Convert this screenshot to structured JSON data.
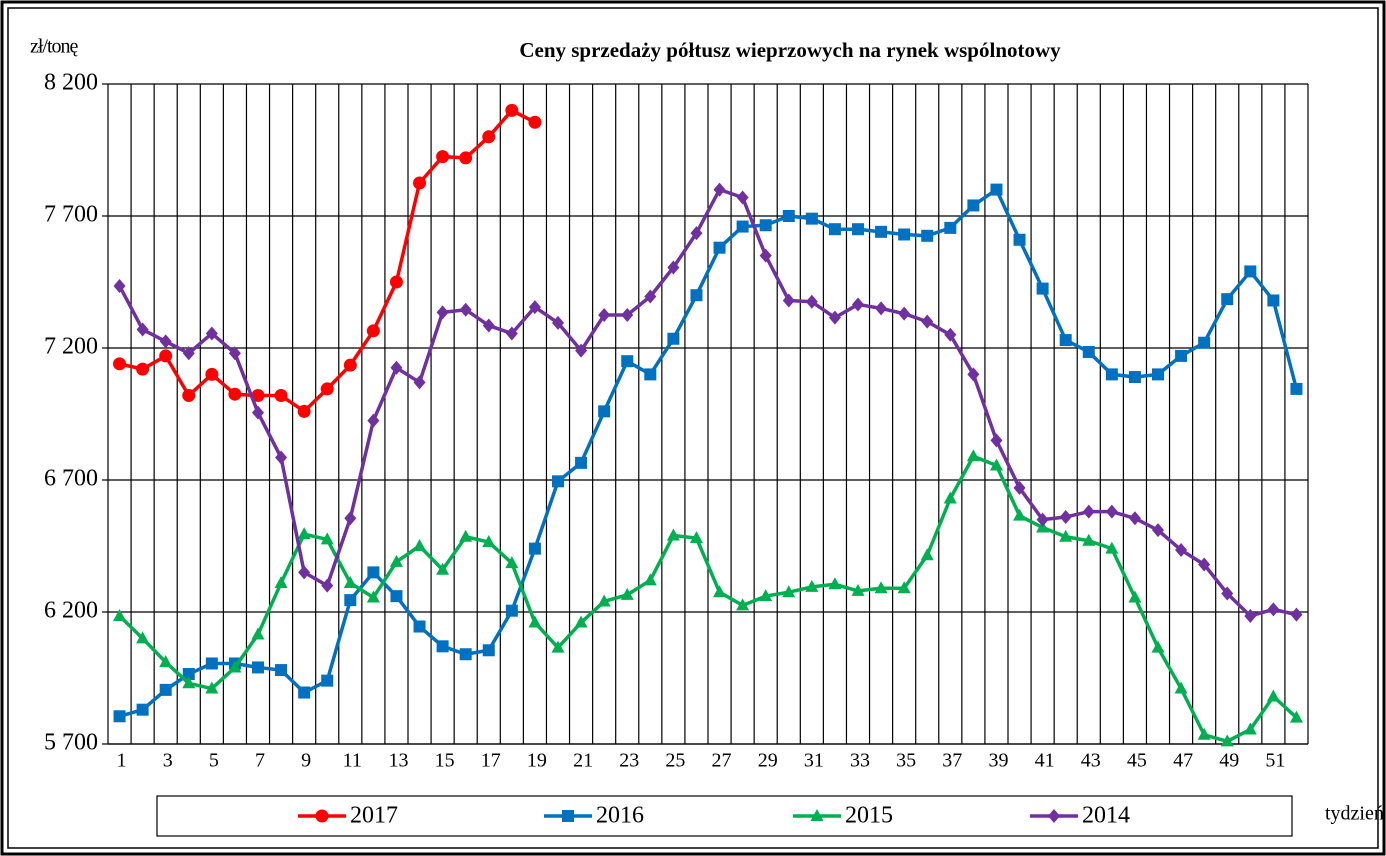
{
  "chart_data": {
    "type": "line",
    "title": "Ceny sprzedaży półtusz wieprzowych  na rynek wspólnotowy",
    "y_label": "zł/tonę",
    "x_label": "tydzień",
    "categories": [
      "1",
      null,
      "3",
      null,
      "5",
      null,
      "7",
      null,
      "9",
      null,
      "11",
      null,
      "13",
      null,
      "15",
      null,
      "17",
      null,
      "19",
      null,
      "21",
      null,
      "23",
      null,
      "25",
      null,
      "27",
      null,
      "29",
      null,
      "31",
      null,
      "33",
      null,
      "35",
      null,
      "37",
      null,
      "39",
      null,
      "41",
      null,
      "43",
      null,
      "45",
      null,
      "47",
      null,
      "49",
      null,
      "51",
      null
    ],
    "ylim": [
      5700,
      8200
    ],
    "yticks": [
      {
        "value": 5700,
        "label": "5 700"
      },
      {
        "value": 6200,
        "label": "6 200"
      },
      {
        "value": 6700,
        "label": "6 700"
      },
      {
        "value": 7200,
        "label": "7 200"
      },
      {
        "value": 7700,
        "label": "7 700"
      },
      {
        "value": 8200,
        "label": "8 200"
      }
    ],
    "grid": true,
    "legend": "bottom",
    "series": [
      {
        "name": "2017",
        "color": "#ff0000",
        "marker": "circle",
        "values": [
          7140,
          7120,
          7170,
          7020,
          7100,
          7025,
          7020,
          7020,
          6960,
          7045,
          7135,
          7265,
          7450,
          7825,
          7925,
          7920,
          8000,
          8100,
          8055,
          null,
          null,
          null,
          null,
          null,
          null,
          null,
          null,
          null,
          null,
          null,
          null,
          null,
          null,
          null,
          null,
          null,
          null,
          null,
          null,
          null,
          null,
          null,
          null,
          null,
          null,
          null,
          null,
          null,
          null,
          null,
          null,
          null
        ]
      },
      {
        "name": "2016",
        "color": "#0070c0",
        "marker": "square",
        "values": [
          5805,
          5830,
          5905,
          5965,
          6005,
          6005,
          5990,
          5980,
          5895,
          5940,
          6245,
          6350,
          6260,
          6145,
          6070,
          6040,
          6055,
          6205,
          6440,
          6695,
          6765,
          6960,
          7150,
          7100,
          7235,
          7400,
          7580,
          7660,
          7665,
          7700,
          7690,
          7650,
          7650,
          7640,
          7630,
          7625,
          7655,
          7740,
          7800,
          7610,
          7425,
          7230,
          7185,
          7100,
          7090,
          7100,
          7170,
          7220,
          7385,
          7490,
          7380,
          7045
        ]
      },
      {
        "name": "2015",
        "color": "#00b050",
        "marker": "triangle",
        "values": [
          6185,
          6100,
          6010,
          5930,
          5910,
          5990,
          6115,
          6310,
          6495,
          6475,
          6310,
          6255,
          6390,
          6450,
          6360,
          6485,
          6465,
          6385,
          6160,
          6065,
          6160,
          6240,
          6265,
          6320,
          6490,
          6480,
          6275,
          6225,
          6260,
          6275,
          6295,
          6305,
          6280,
          6290,
          6290,
          6415,
          6630,
          6790,
          6755,
          6565,
          6520,
          6485,
          6470,
          6440,
          6255,
          6065,
          5910,
          5735,
          5710,
          5755,
          5880,
          5800
        ]
      },
      {
        "name": "2014",
        "color": "#7030a0",
        "marker": "diamond",
        "values": [
          7435,
          7270,
          7225,
          7180,
          7255,
          7180,
          6955,
          6785,
          6350,
          6300,
          6555,
          6925,
          7125,
          7070,
          7335,
          7345,
          7285,
          7255,
          7355,
          7295,
          7190,
          7325,
          7325,
          7395,
          7505,
          7635,
          7800,
          7770,
          7550,
          7380,
          7375,
          7315,
          7365,
          7350,
          7330,
          7300,
          7250,
          7100,
          6850,
          6670,
          6550,
          6560,
          6580,
          6580,
          6555,
          6510,
          6435,
          6380,
          6270,
          6185,
          6210,
          6190
        ]
      }
    ]
  }
}
